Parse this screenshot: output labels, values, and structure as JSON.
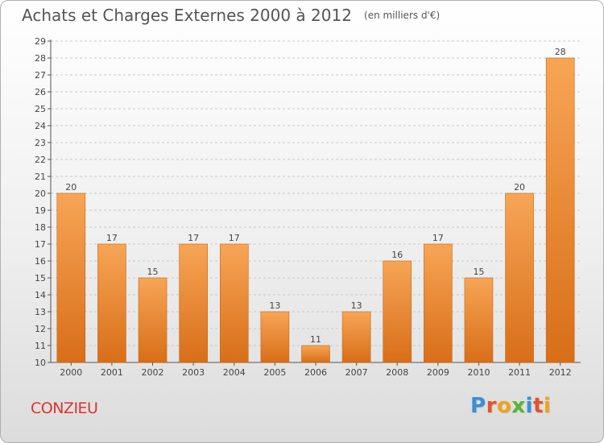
{
  "title": "Achats et Charges Externes 2000 à 2012",
  "unit_note": "(en milliers d'€)",
  "commune": "CONZIEU",
  "logo": {
    "text": "Proxiti",
    "letter_colors": [
      "#3a8fd6",
      "#e2542c",
      "#f0a31a",
      "#5bb431",
      "#3a8fd6",
      "#e2542c",
      "#f0a31a"
    ]
  },
  "colors": {
    "bar_top": "#f7a556",
    "bar_bottom": "#d86e18",
    "bar_edge": "#c9650f",
    "grid": "#c8c8c8",
    "text": "#444444"
  },
  "chart_data": {
    "type": "bar",
    "categories": [
      "2000",
      "2001",
      "2002",
      "2003",
      "2004",
      "2005",
      "2006",
      "2007",
      "2008",
      "2009",
      "2010",
      "2011",
      "2012"
    ],
    "values": [
      20,
      17,
      15,
      17,
      17,
      13,
      11,
      13,
      16,
      17,
      15,
      20,
      28
    ],
    "ylim": [
      10,
      29
    ],
    "yticks": [
      10,
      11,
      12,
      13,
      14,
      15,
      16,
      17,
      18,
      19,
      20,
      21,
      22,
      23,
      24,
      25,
      26,
      27,
      28,
      29
    ],
    "grid": "horizontal dashed",
    "data_labels": true,
    "title": "Achats et Charges Externes 2000 à 2012",
    "xlabel": "",
    "ylabel": ""
  }
}
